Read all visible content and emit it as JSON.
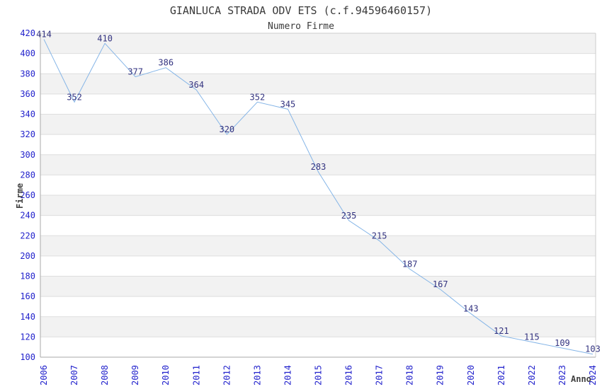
{
  "chart_data": {
    "type": "line",
    "title": "GIANLUCA STRADA ODV ETS (c.f.94596460157)",
    "subtitle": "Numero Firme",
    "xlabel": "Anno",
    "ylabel": "Firme",
    "x": [
      "2006",
      "2007",
      "2008",
      "2009",
      "2010",
      "2011",
      "2012",
      "2013",
      "2014",
      "2015",
      "2016",
      "2017",
      "2018",
      "2019",
      "2020",
      "2021",
      "2022",
      "2023",
      "2024"
    ],
    "values": [
      414,
      352,
      410,
      377,
      386,
      364,
      320,
      352,
      345,
      283,
      235,
      215,
      187,
      167,
      143,
      121,
      115,
      109,
      103
    ],
    "data_labels_visible": true,
    "ylim": [
      100,
      420
    ],
    "y_tick_step": 20,
    "y_ticks": [
      420,
      400,
      380,
      360,
      340,
      320,
      300,
      280,
      260,
      240,
      220,
      200,
      180,
      160,
      140,
      120,
      100
    ],
    "legend": "none",
    "grid": "horizontal",
    "band_fill": "alternating-gray-white-from-top",
    "x_tick_rotation": "vertical-bottom-to-top",
    "colors": {
      "line": "#85b5e7",
      "tick_label": "#2222cc",
      "data_label": "#333380",
      "band": "#f2f2f2",
      "grid": "#dedede",
      "axis": "#aaaaaa",
      "plot_border": "#cccccc",
      "title": "#3a3a3a",
      "axis_title": "#404040",
      "background": "#ffffff"
    }
  }
}
